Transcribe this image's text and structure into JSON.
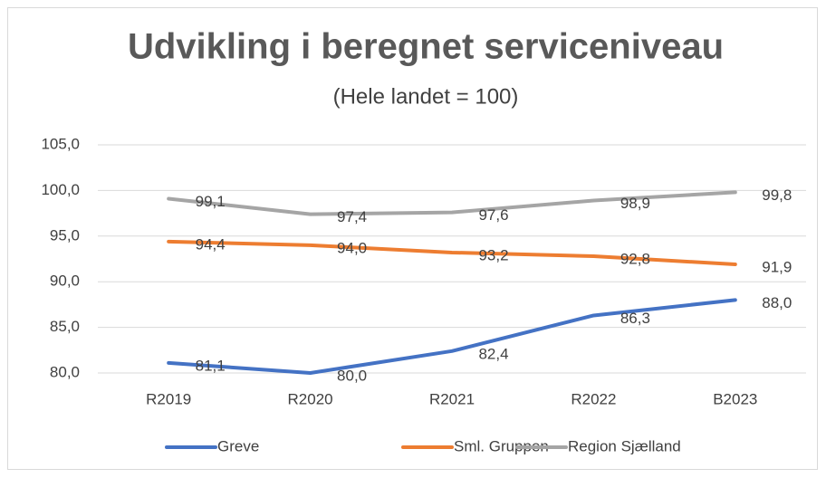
{
  "chart_data": {
    "type": "line",
    "title": "Udvikling i beregnet serviceniveau",
    "subtitle": "(Hele landet = 100)",
    "categories": [
      "R2019",
      "R2020",
      "R2021",
      "R2022",
      "B2023"
    ],
    "series": [
      {
        "name": "Greve",
        "color": "#4472c4",
        "values": [
          81.1,
          80.0,
          82.4,
          86.3,
          88.0
        ],
        "value_labels": [
          "81,1",
          "80,0",
          "82,4",
          "86,3",
          "88,0"
        ]
      },
      {
        "name": "Sml. Gruppen",
        "color": "#ed7d31",
        "values": [
          94.4,
          94.0,
          93.2,
          92.8,
          91.9
        ],
        "value_labels": [
          "94,4",
          "94,0",
          "93,2",
          "92,8",
          "91,9"
        ]
      },
      {
        "name": "Region Sjælland",
        "color": "#a5a5a5",
        "values": [
          99.1,
          97.4,
          97.6,
          98.9,
          99.8
        ],
        "value_labels": [
          "99,1",
          "97,4",
          "97,6",
          "98,9",
          "99,8"
        ]
      }
    ],
    "ylim": [
      80,
      105
    ],
    "yticks": [
      {
        "value": 80,
        "label": "80,0"
      },
      {
        "value": 85,
        "label": "85,0"
      },
      {
        "value": 90,
        "label": "90,0"
      },
      {
        "value": 95,
        "label": "95,0"
      },
      {
        "value": 100,
        "label": "100,0"
      },
      {
        "value": 105,
        "label": "105,0"
      }
    ],
    "grid": true,
    "legend": "bottom"
  }
}
